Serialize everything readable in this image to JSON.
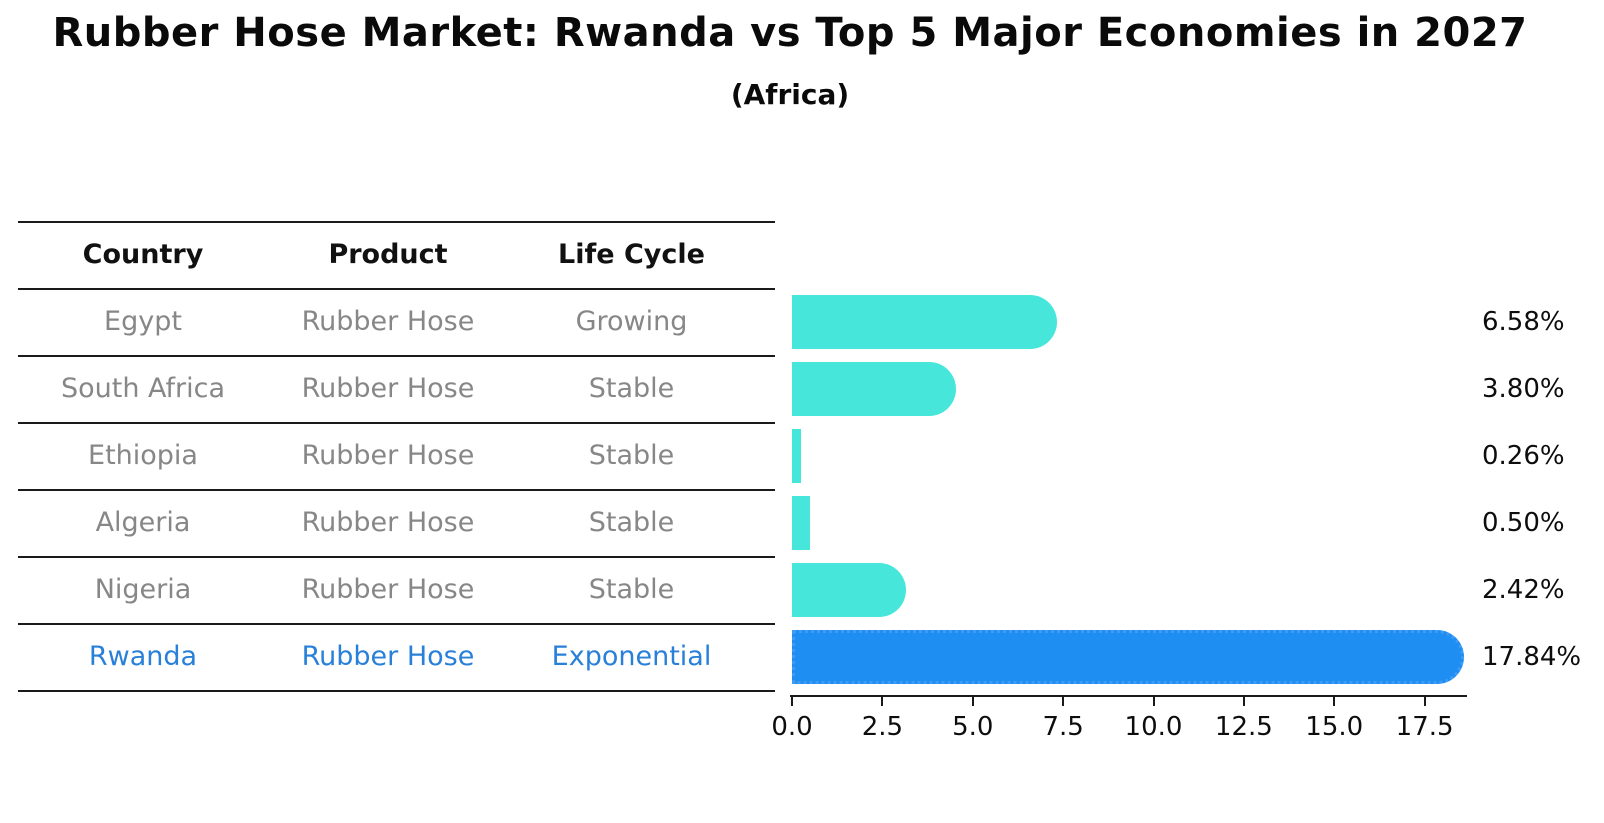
{
  "title": "Rubber Hose Market: Rwanda vs Top 5 Major Economies in 2027",
  "subtitle": "(Africa)",
  "table": {
    "headers": [
      "Country",
      "Product",
      "Life Cycle"
    ],
    "rows": [
      {
        "country": "Egypt",
        "product": "Rubber Hose",
        "life_cycle": "Growing",
        "highlight": false
      },
      {
        "country": "South Africa",
        "product": "Rubber Hose",
        "life_cycle": "Stable",
        "highlight": false
      },
      {
        "country": "Ethiopia",
        "product": "Rubber Hose",
        "life_cycle": "Stable",
        "highlight": false
      },
      {
        "country": "Algeria",
        "product": "Rubber Hose",
        "life_cycle": "Stable",
        "highlight": false
      },
      {
        "country": "Nigeria",
        "product": "Rubber Hose",
        "life_cycle": "Stable",
        "highlight": false
      },
      {
        "country": "Rwanda",
        "product": "Rubber Hose",
        "life_cycle": "Exponential",
        "highlight": true
      }
    ]
  },
  "chart_data": {
    "type": "bar",
    "orientation": "horizontal",
    "title": "Rubber Hose Market: Rwanda vs Top 5 Major Economies in 2027",
    "subtitle": "(Africa)",
    "categories": [
      "Egypt",
      "South Africa",
      "Ethiopia",
      "Algeria",
      "Nigeria",
      "Rwanda"
    ],
    "values": [
      6.58,
      3.8,
      0.26,
      0.5,
      2.42,
      17.84
    ],
    "value_labels": [
      "6.58%",
      "3.80%",
      "0.26%",
      "0.50%",
      "2.42%",
      "17.84%"
    ],
    "highlight_index": 5,
    "x_ticks": [
      0.0,
      2.5,
      5.0,
      7.5,
      10.0,
      12.5,
      15.0,
      17.5
    ],
    "x_tick_labels": [
      "0.0",
      "2.5",
      "5.0",
      "7.5",
      "10.0",
      "12.5",
      "15.0",
      "17.5"
    ],
    "xlim": [
      0,
      18.7
    ],
    "grid": false,
    "legend": false,
    "colors": {
      "default_bar": "#47E6DB",
      "highlight_bar": "#1E8EF2",
      "highlight_edge": "#3E9BF5",
      "highlight_text": "#2980D9",
      "cell_text": "#878787",
      "header_text": "#111111",
      "axis": "#1a1a1a",
      "label_text": "#0d0d0d"
    }
  }
}
